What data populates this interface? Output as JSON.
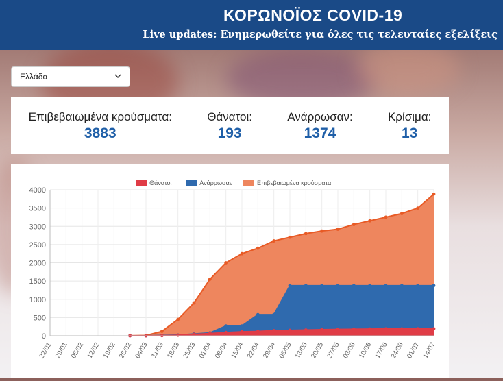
{
  "header": {
    "title": "ΚΟΡΩΝΟΪΟΣ COVID-19",
    "subtitle": "Live updates: Ενημερωθείτε για όλες τις τελευταίες εξελίξεις"
  },
  "country_select": {
    "value": "Ελλάδα",
    "icon": "chevron-down-icon"
  },
  "stats": [
    {
      "label": "Επιβεβαιωμένα κρούσματα:",
      "value": "3883"
    },
    {
      "label": "Θάνατοι:",
      "value": "193"
    },
    {
      "label": "Ανάρρωσαν:",
      "value": "1374"
    },
    {
      "label": "Κρίσιμα:",
      "value": "13"
    }
  ],
  "colors": {
    "header": "#1a4a87",
    "deaths": "#e03c46",
    "recovered": "#2f6aae",
    "confirmed": "#ee865e",
    "confirmed_line": "#e85a25",
    "stat_value": "#1f5fa8"
  },
  "chart_data": {
    "type": "area",
    "title": "",
    "xlabel": "",
    "ylabel": "",
    "ylim": [
      0,
      4000
    ],
    "y_ticks": [
      0,
      500,
      1000,
      1500,
      2000,
      2500,
      3000,
      3500,
      4000
    ],
    "x_ticks": [
      "22/01",
      "29/01",
      "05/02",
      "12/02",
      "19/02",
      "26/02",
      "04/03",
      "11/03",
      "18/03",
      "25/03",
      "01/04",
      "08/04",
      "15/04",
      "22/04",
      "29/04",
      "06/05",
      "13/05",
      "20/05",
      "27/05",
      "03/06",
      "10/06",
      "17/06",
      "24/06",
      "01/07",
      "14/07"
    ],
    "legend": [
      "Θάνατοι",
      "Ανάρρωσαν",
      "Επιβεβαιωμένα κρούσματα"
    ],
    "legend_position": "top",
    "series": [
      {
        "name": "Επιβεβαιωμένα κρούσματα",
        "x": [
          "26/02",
          "04/03",
          "11/03",
          "18/03",
          "25/03",
          "01/04",
          "08/04",
          "15/04",
          "22/04",
          "29/04",
          "06/05",
          "13/05",
          "20/05",
          "27/05",
          "03/06",
          "10/06",
          "17/06",
          "24/06",
          "01/07",
          "14/07"
        ],
        "values": [
          3,
          10,
          120,
          450,
          900,
          1550,
          2000,
          2250,
          2400,
          2600,
          2700,
          2800,
          2870,
          2920,
          3050,
          3150,
          3250,
          3350,
          3500,
          3883
        ]
      },
      {
        "name": "Ανάρρωσαν",
        "x": [
          "26/02",
          "04/03",
          "11/03",
          "18/03",
          "25/03",
          "01/04",
          "08/04",
          "15/04",
          "22/04",
          "29/04",
          "06/05",
          "13/05",
          "20/05",
          "27/05",
          "03/06",
          "10/06",
          "17/06",
          "24/06",
          "01/07",
          "14/07"
        ],
        "values": [
          0,
          0,
          10,
          20,
          50,
          80,
          270,
          270,
          580,
          580,
          1374,
          1374,
          1374,
          1374,
          1374,
          1374,
          1374,
          1374,
          1374,
          1374
        ]
      },
      {
        "name": "Θάνατοι",
        "x": [
          "26/02",
          "04/03",
          "11/03",
          "18/03",
          "25/03",
          "01/04",
          "08/04",
          "15/04",
          "22/04",
          "29/04",
          "06/05",
          "13/05",
          "20/05",
          "27/05",
          "03/06",
          "10/06",
          "17/06",
          "24/06",
          "01/07",
          "14/07"
        ],
        "values": [
          0,
          0,
          3,
          15,
          40,
          60,
          90,
          110,
          120,
          140,
          150,
          160,
          170,
          175,
          180,
          185,
          190,
          190,
          192,
          193
        ]
      }
    ]
  }
}
